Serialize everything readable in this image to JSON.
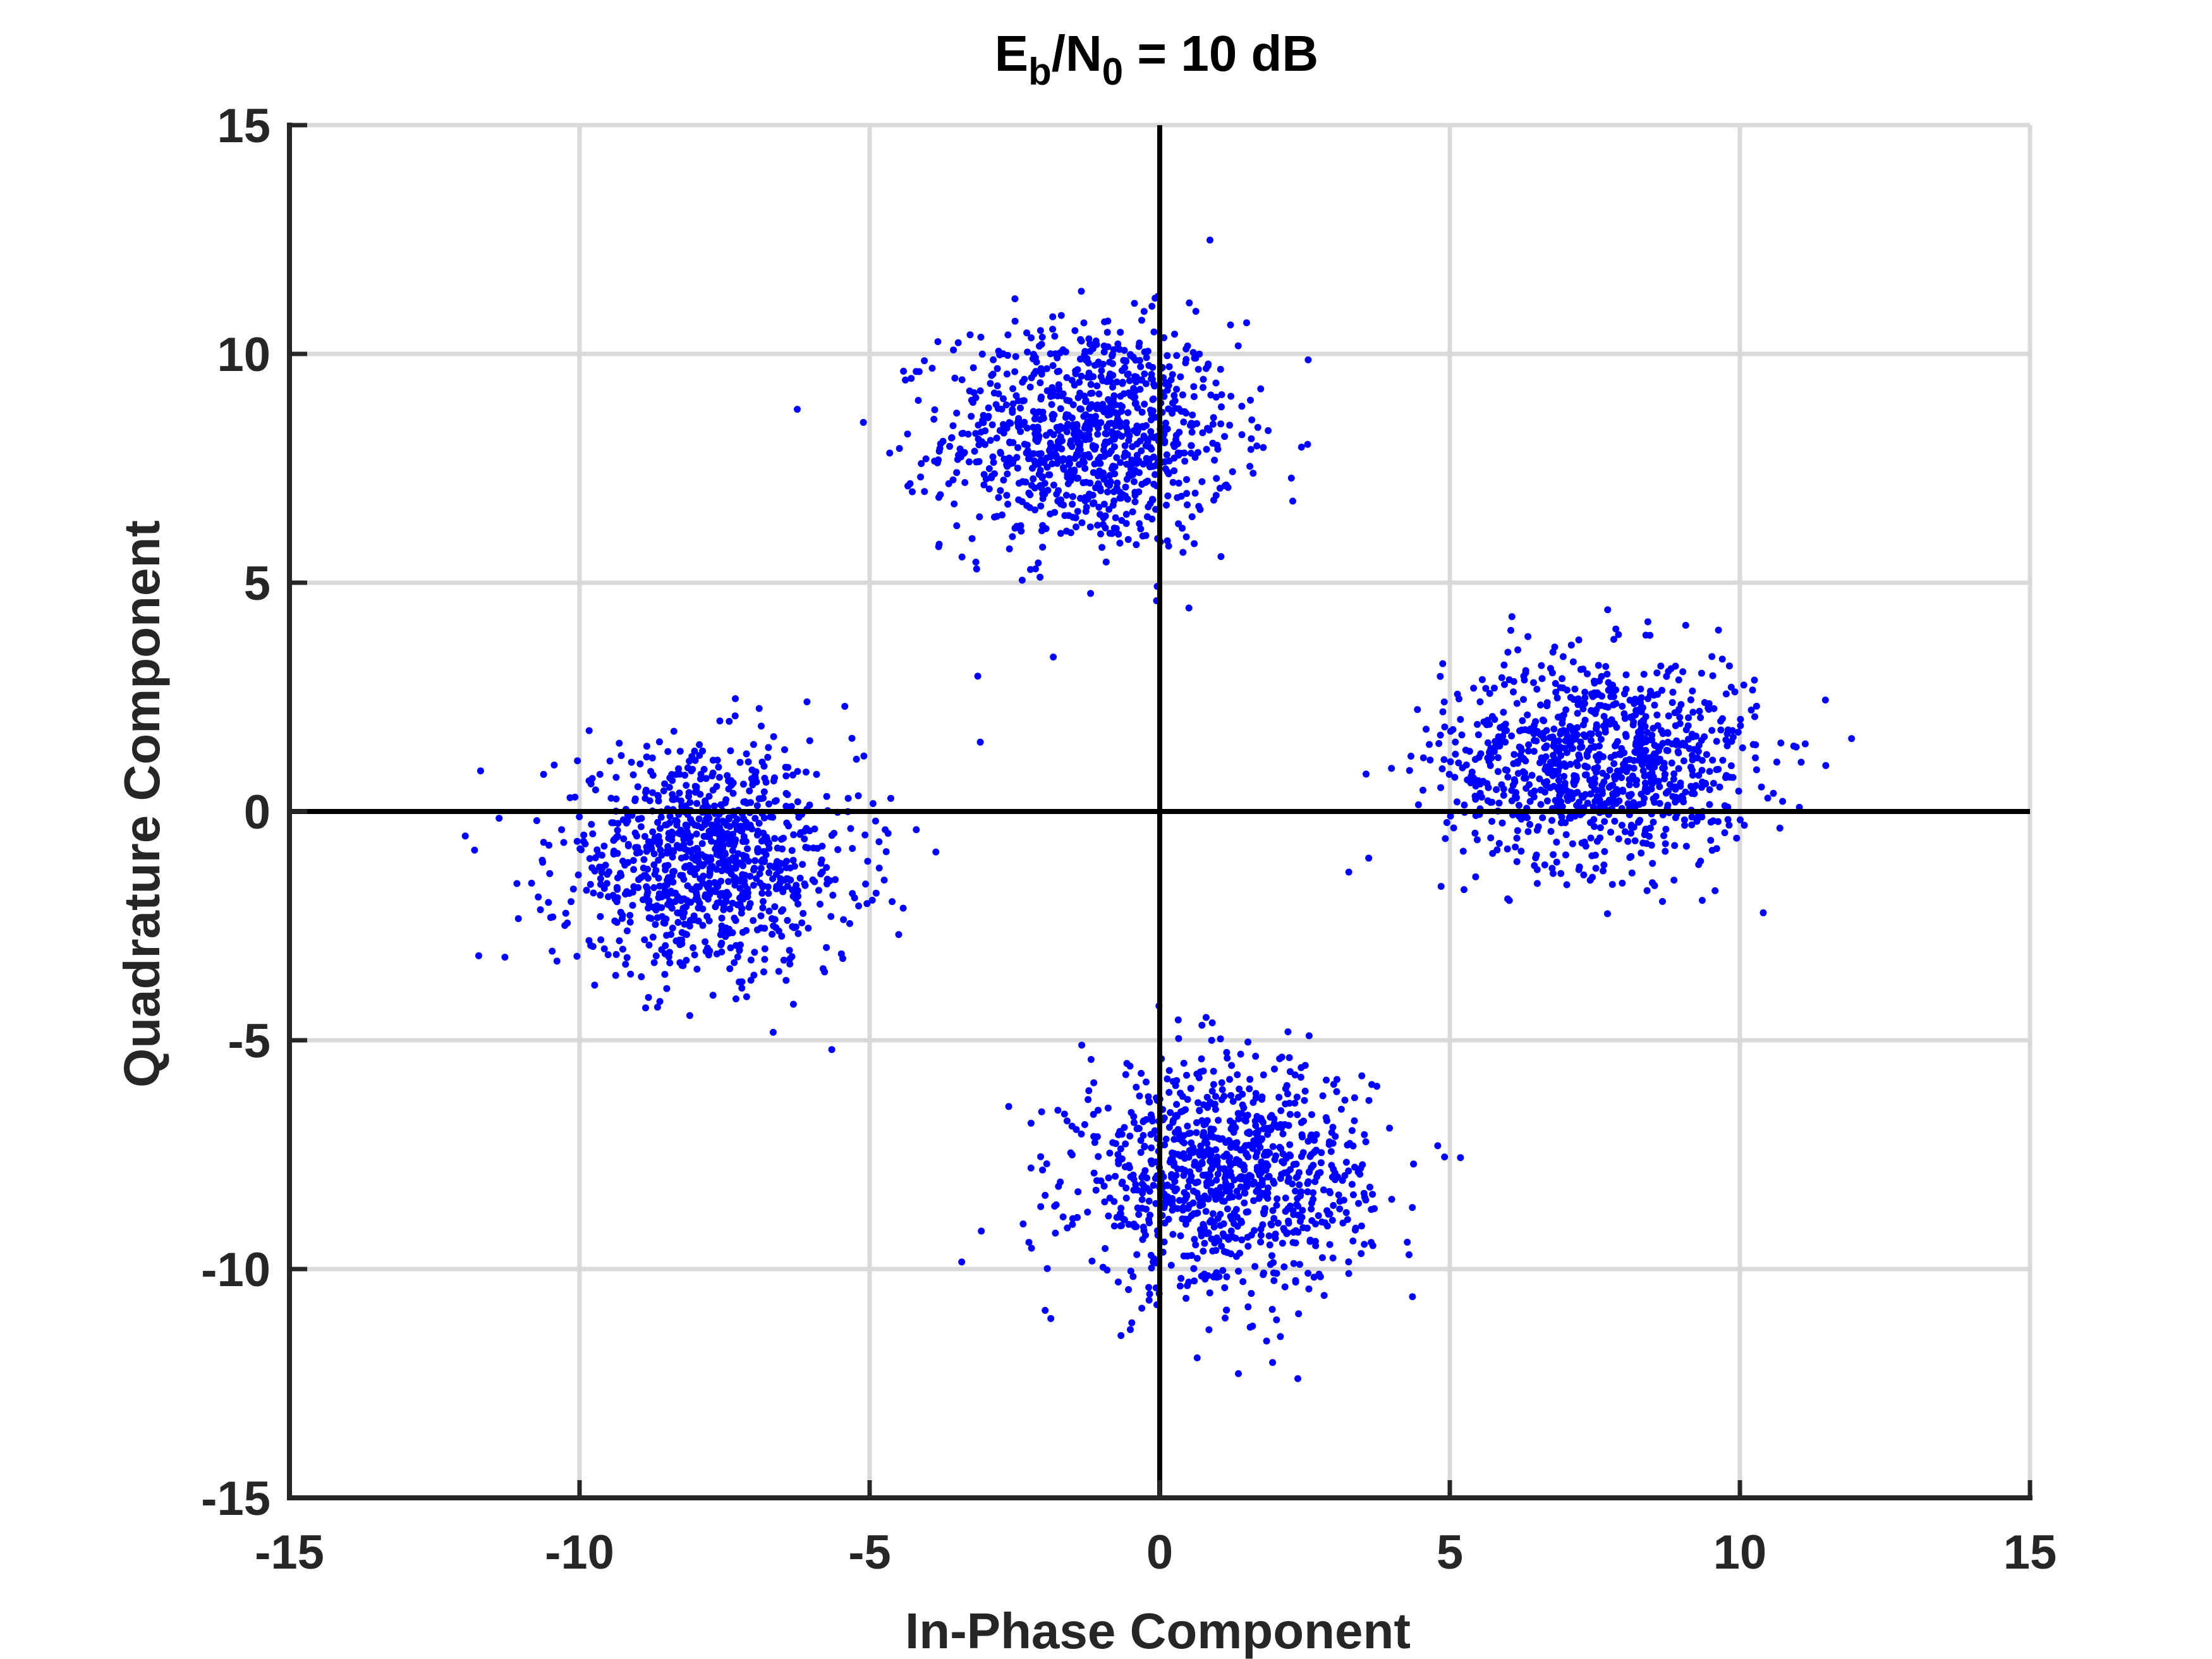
{
  "chart_data": {
    "type": "scatter",
    "title": {
      "main": "E",
      "sub1": "b",
      "mid": "/N",
      "sub2": "0",
      "tail": " = 10 dB"
    },
    "xlabel": "In-Phase Component",
    "ylabel": "Quadrature Component",
    "xlim": [
      -15,
      15
    ],
    "ylim": [
      -15,
      15
    ],
    "xticks": [
      -15,
      -10,
      -5,
      0,
      5,
      10,
      15
    ],
    "yticks": [
      -15,
      -10,
      -5,
      0,
      5,
      10,
      15
    ],
    "xtick_labels": [
      "-15",
      "-10",
      "-5",
      "0",
      "5",
      "10",
      "15"
    ],
    "ytick_labels": [
      "-15",
      "-10",
      "-5",
      "0",
      "5",
      "10",
      "15"
    ],
    "grid": true,
    "zero_lines": true,
    "marker_color": "#0000ff",
    "series": [
      {
        "clusters": [
          {
            "center": [
              -1.2,
              8.2
            ],
            "spread": [
              1.25,
              1.25
            ],
            "count": 1000
          },
          {
            "center": [
              7.6,
              1.1
            ],
            "spread": [
              1.35,
              1.15
            ],
            "count": 1000
          },
          {
            "center": [
              -7.8,
              -1.1
            ],
            "spread": [
              1.3,
              1.2
            ],
            "count": 1000
          },
          {
            "center": [
              1.1,
              -8.0
            ],
            "spread": [
              1.25,
              1.25
            ],
            "count": 1000
          }
        ]
      }
    ]
  }
}
